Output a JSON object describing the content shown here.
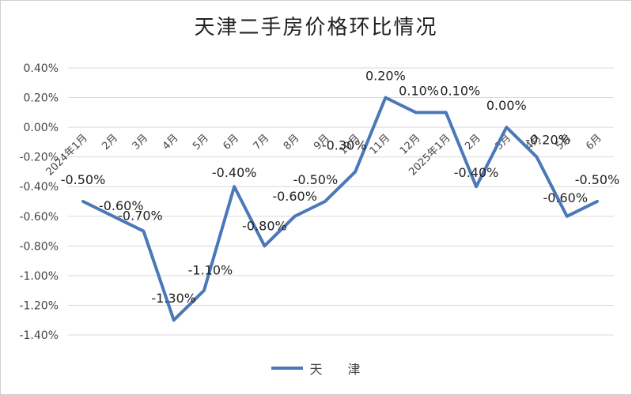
{
  "chart_data": {
    "type": "line",
    "title": "天津二手房价格环比情况",
    "categories": [
      "2024年1月",
      "2月",
      "3月",
      "4月",
      "5月",
      "6月",
      "7月",
      "8月",
      "9月",
      "10月",
      "11月",
      "12月",
      "2025年1月",
      "2月",
      "3月",
      "4月",
      "5月",
      "6月"
    ],
    "series": [
      {
        "name": "天　　津",
        "values": [
          -0.5,
          -0.6,
          -0.7,
          -1.3,
          -1.1,
          -0.4,
          -0.8,
          -0.6,
          -0.5,
          -0.3,
          0.2,
          0.1,
          0.1,
          -0.4,
          0.0,
          -0.2,
          -0.6,
          -0.5
        ],
        "labels": [
          "-0.50%",
          "-0.60%",
          "-0.70%",
          "-1.30%",
          "-1.10%",
          "-0.40%",
          "-0.80%",
          "-0.60%",
          "-0.50%",
          "-0.30%",
          "0.20%",
          "0.10%",
          "0.10%",
          "-0.40%",
          "0.00%",
          "-0.20%",
          "-0.60%",
          "-0.50%"
        ],
        "color": "#4a78b8"
      }
    ],
    "ylim": [
      -1.4,
      0.4
    ],
    "yticks": [
      0.4,
      0.2,
      0.0,
      -0.2,
      -0.4,
      -0.6,
      -0.8,
      -1.0,
      -1.2,
      -1.4
    ],
    "ytick_labels": [
      "0.40%",
      "0.20%",
      "0.00%",
      "-0.20%",
      "-0.40%",
      "-0.60%",
      "-0.80%",
      "-1.00%",
      "-1.20%",
      "-1.40%"
    ],
    "grid": true,
    "legend_position": "bottom"
  }
}
